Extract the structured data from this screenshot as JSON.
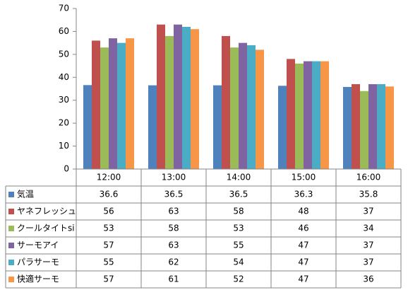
{
  "chart_data": {
    "type": "bar",
    "categories": [
      "12:00",
      "13:00",
      "14:00",
      "15:00",
      "16:00"
    ],
    "series": [
      {
        "name": "気温",
        "color": "#4f81bd",
        "values": [
          36.6,
          36.5,
          36.5,
          36.3,
          35.8
        ]
      },
      {
        "name": "ヤネフレッシュ",
        "color": "#c0504d",
        "values": [
          56,
          63,
          58,
          48,
          37
        ]
      },
      {
        "name": "クールタイトsi",
        "color": "#9bbb59",
        "values": [
          53,
          58,
          53,
          46,
          34
        ]
      },
      {
        "name": "サーモアイ",
        "color": "#8064a2",
        "values": [
          57,
          63,
          55,
          47,
          37
        ]
      },
      {
        "name": "パラサーモ",
        "color": "#4bacc6",
        "values": [
          55,
          62,
          54,
          47,
          37
        ]
      },
      {
        "name": "快適サーモ",
        "color": "#f79646",
        "values": [
          57,
          61,
          52,
          47,
          36
        ]
      }
    ],
    "ylim": [
      0,
      70
    ],
    "yticks": [
      0,
      10,
      20,
      30,
      40,
      50,
      60,
      70
    ],
    "grid": false,
    "legend": "data-table"
  }
}
